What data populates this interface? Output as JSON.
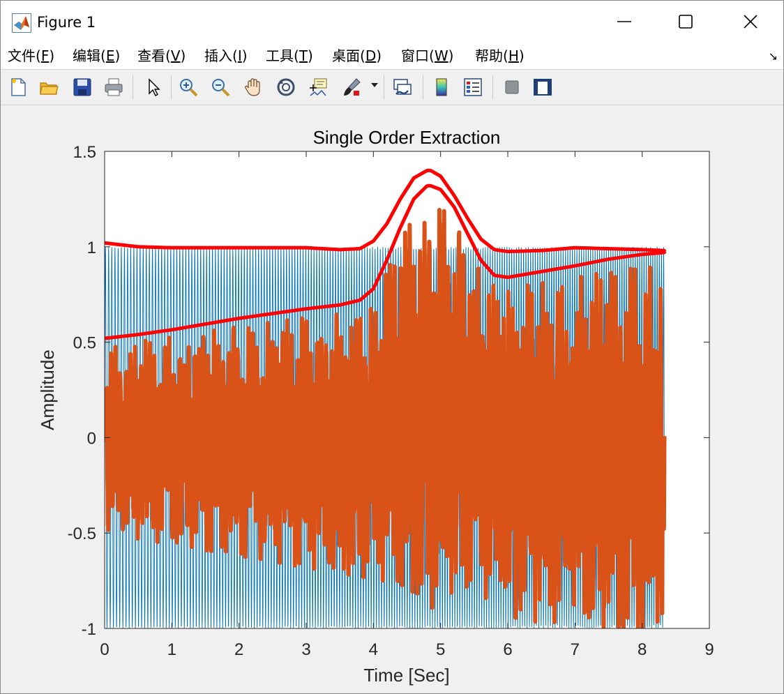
{
  "window": {
    "title": "Figure 1",
    "icon": "matlab-logo-icon",
    "controls": [
      "minimize-icon",
      "maximize-icon",
      "close-icon"
    ]
  },
  "menu": {
    "items": [
      {
        "pre": "文件(",
        "key": "F",
        "post": ")"
      },
      {
        "pre": "编辑(",
        "key": "E",
        "post": ")"
      },
      {
        "pre": "查看(",
        "key": "V",
        "post": ")"
      },
      {
        "pre": "插入(",
        "key": "I",
        "post": ")"
      },
      {
        "pre": "工具(",
        "key": "T",
        "post": ")"
      },
      {
        "pre": "桌面(",
        "key": "D",
        "post": ")"
      },
      {
        "pre": "窗口(",
        "key": "W",
        "post": ")"
      },
      {
        "pre": "帮助(",
        "key": "H",
        "post": ")"
      }
    ],
    "dock_arrow": "↘"
  },
  "toolbar": {
    "buttons": [
      "new-figure-icon",
      "open-file-icon",
      "save-icon",
      "print-icon",
      "pointer-icon",
      "zoom-in-icon",
      "zoom-out-icon",
      "pan-hand-icon",
      "rotate-3d-icon",
      "data-cursor-icon",
      "brush-icon",
      "link-plot-icon",
      "colorbar-icon",
      "legend-icon",
      "hide-plot-tools-icon",
      "show-plot-tools-icon"
    ]
  },
  "colors": {
    "signal": "#0072BD",
    "extracted": "#D95319",
    "envelope": "#FF0000",
    "axes_bg": "#FFFFFF",
    "figure_bg": "#F0F0F0"
  },
  "chart_data": {
    "type": "line",
    "title": "Single Order Extraction",
    "xlabel": "Time [Sec]",
    "ylabel": "Amplitude",
    "xlim": [
      0,
      9
    ],
    "ylim": [
      -1,
      1.5
    ],
    "xticks": [
      0,
      1,
      2,
      3,
      4,
      5,
      6,
      7,
      8,
      9
    ],
    "yticks": [
      1.5,
      1,
      0.5,
      0,
      -0.5,
      -1
    ],
    "ytick_labels": [
      "1.5",
      "1",
      "0.5",
      "0",
      "-0.5",
      "-1"
    ],
    "grid": false,
    "series": [
      {
        "role": "signal",
        "color": "#0072BD",
        "x_range": [
          0,
          8.33
        ],
        "y_range": [
          -1,
          1
        ]
      },
      {
        "role": "extracted-order",
        "color": "#D95319",
        "x_range": [
          0,
          8.33
        ]
      },
      {
        "role": "upper-envelope",
        "color": "#FF0000",
        "x": [
          0,
          0.5,
          1,
          2,
          3,
          3.5,
          3.8,
          4,
          4.2,
          4.4,
          4.6,
          4.8,
          4.85,
          5.0,
          5.2,
          5.4,
          5.6,
          5.8,
          6.0,
          6.5,
          7.0,
          7.5,
          8.0,
          8.33
        ],
        "y": [
          1.02,
          1.0,
          0.995,
          0.995,
          0.995,
          0.985,
          0.99,
          1.03,
          1.12,
          1.25,
          1.36,
          1.4,
          1.4,
          1.37,
          1.27,
          1.15,
          1.04,
          0.985,
          0.975,
          0.98,
          0.995,
          0.99,
          0.985,
          0.98
        ]
      },
      {
        "role": "lower-envelope",
        "color": "#FF0000",
        "x": [
          0,
          0.5,
          1,
          1.5,
          2,
          2.5,
          3,
          3.5,
          3.8,
          4,
          4.2,
          4.4,
          4.6,
          4.8,
          4.85,
          5.0,
          5.2,
          5.4,
          5.6,
          5.8,
          6.0,
          6.5,
          7.0,
          7.5,
          8.0,
          8.33
        ],
        "y": [
          0.52,
          0.54,
          0.565,
          0.595,
          0.625,
          0.65,
          0.675,
          0.695,
          0.72,
          0.78,
          0.93,
          1.1,
          1.25,
          1.32,
          1.32,
          1.3,
          1.21,
          1.07,
          0.93,
          0.85,
          0.84,
          0.87,
          0.9,
          0.935,
          0.96,
          0.97
        ]
      }
    ]
  }
}
